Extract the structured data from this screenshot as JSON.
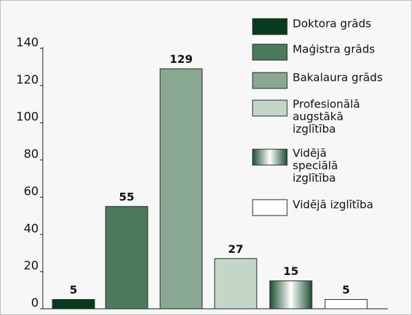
{
  "chart_data": {
    "type": "bar",
    "categories": [
      "Doktora grāds",
      "Maģistra grāds",
      "Bakalaura grāds",
      "Profesionālā augstākā izglītība",
      "Vidējā speciālā izglītība",
      "Vidējā izglītība"
    ],
    "values": [
      5,
      55,
      129,
      27,
      15,
      5
    ],
    "colors": [
      "#073a1e",
      "#4c7a5c",
      "#88a892",
      "#c3d6c8",
      "#1f5033",
      "#ffffff"
    ],
    "ylim": [
      0,
      140
    ],
    "yticks": [
      0,
      20,
      40,
      60,
      80,
      100,
      120,
      140
    ],
    "grid": false
  }
}
